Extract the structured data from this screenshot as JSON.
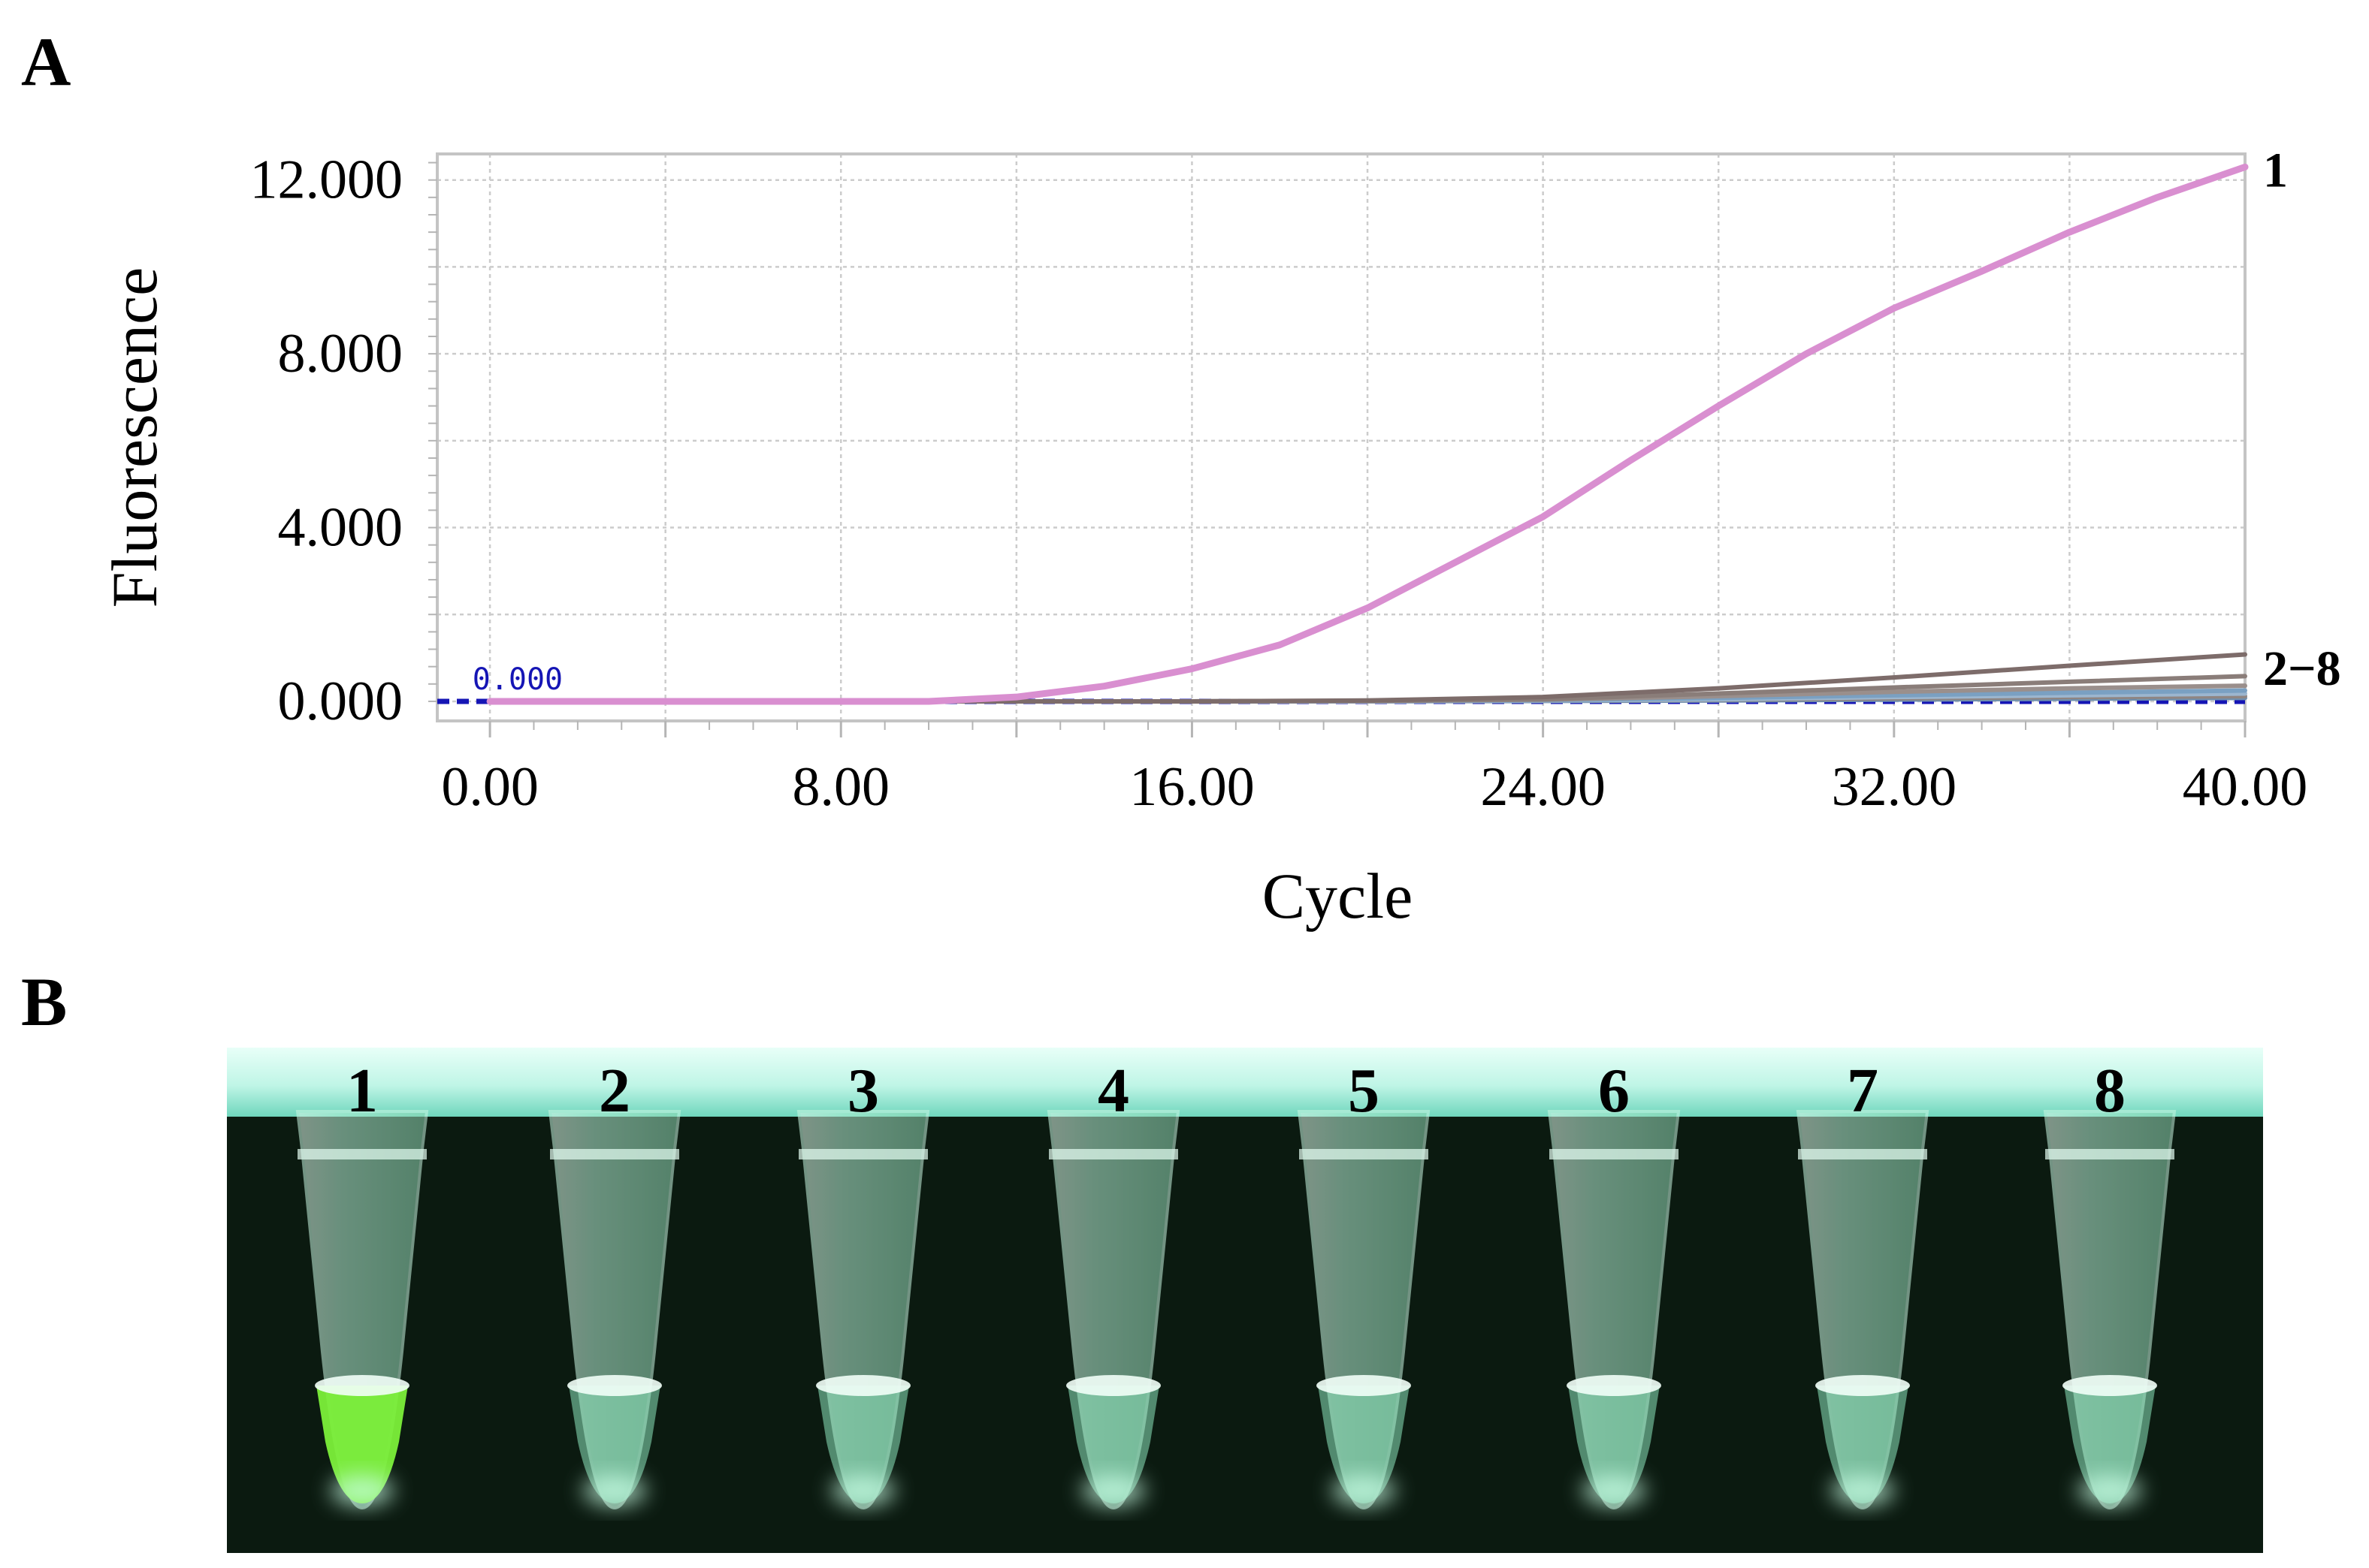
{
  "panels": {
    "a_label": "A",
    "b_label": "B"
  },
  "chart_data": {
    "type": "line",
    "xlabel": "Cycle",
    "ylabel": "Fluorescence",
    "xlim": [
      -1.2,
      40.0
    ],
    "ylim": [
      -0.45,
      12.6
    ],
    "xticks": [
      0,
      8,
      16,
      24,
      32,
      40
    ],
    "xtick_labels": [
      "0.00",
      "8.00",
      "16.00",
      "24.00",
      "32.00",
      "40.00"
    ],
    "yticks": [
      0,
      4,
      8,
      12
    ],
    "ytick_labels": [
      "0.000",
      "4.000",
      "8.000",
      "12.000"
    ],
    "grid": true,
    "threshold": {
      "value": 0.0,
      "label": "0.000",
      "color": "#1515b5"
    },
    "series": [
      {
        "name": "1",
        "color": "#d98fd0",
        "x": [
          0,
          2,
          4,
          6,
          8,
          10,
          12,
          14,
          16,
          18,
          20,
          22,
          24,
          26,
          28,
          30,
          32,
          34,
          36,
          38,
          40
        ],
        "y": [
          0,
          0,
          0,
          0,
          0,
          0,
          0.1,
          0.35,
          0.75,
          1.3,
          2.15,
          3.2,
          4.25,
          5.55,
          6.8,
          8.0,
          9.05,
          9.9,
          10.8,
          11.6,
          12.3
        ]
      },
      {
        "name": "2",
        "color": "#7d6c6a",
        "x": [
          0,
          4,
          8,
          12,
          16,
          20,
          24,
          28,
          32,
          36,
          40
        ],
        "y": [
          0,
          0,
          0,
          0,
          0,
          0.02,
          0.1,
          0.3,
          0.55,
          0.82,
          1.08
        ]
      },
      {
        "name": "3",
        "color": "#8a7d79",
        "x": [
          0,
          4,
          8,
          12,
          16,
          20,
          24,
          28,
          32,
          36,
          40
        ],
        "y": [
          0,
          0,
          0,
          0,
          0,
          0.01,
          0.05,
          0.18,
          0.32,
          0.45,
          0.58
        ]
      },
      {
        "name": "4",
        "color": "#9a8f8c",
        "x": [
          0,
          4,
          8,
          12,
          16,
          20,
          24,
          28,
          32,
          36,
          40
        ],
        "y": [
          0,
          0,
          0,
          0,
          0,
          0.01,
          0.04,
          0.12,
          0.22,
          0.3,
          0.36
        ]
      },
      {
        "name": "5",
        "color": "#7aa0c2",
        "x": [
          0,
          4,
          8,
          12,
          16,
          20,
          24,
          28,
          32,
          36,
          40
        ],
        "y": [
          0,
          0,
          0,
          0,
          0,
          0.01,
          0.03,
          0.08,
          0.14,
          0.2,
          0.25
        ]
      },
      {
        "name": "6",
        "color": "#9cb6cf",
        "x": [
          0,
          4,
          8,
          12,
          16,
          20,
          24,
          28,
          32,
          36,
          40
        ],
        "y": [
          0,
          0,
          0,
          0,
          0,
          0,
          0.02,
          0.05,
          0.1,
          0.14,
          0.18
        ]
      },
      {
        "name": "7",
        "color": "#8f8582",
        "x": [
          0,
          4,
          8,
          12,
          16,
          20,
          24,
          28,
          32,
          36,
          40
        ],
        "y": [
          0,
          0,
          0,
          0,
          0,
          0,
          0.02,
          0.04,
          0.07,
          0.1,
          0.12
        ]
      },
      {
        "name": "8",
        "color": "#6f8fae",
        "x": [
          0,
          4,
          8,
          12,
          16,
          20,
          24,
          28,
          32,
          36,
          40
        ],
        "y": [
          0,
          0,
          0,
          0,
          0,
          0,
          0.01,
          0.02,
          0.04,
          0.06,
          0.08
        ]
      }
    ],
    "annotations": [
      {
        "text": "1",
        "series": "1"
      },
      {
        "text": "2−8",
        "series": "2"
      }
    ]
  },
  "tube_photo": {
    "tube_labels": [
      "1",
      "2",
      "3",
      "4",
      "5",
      "6",
      "7",
      "8"
    ],
    "positive_tube": "1",
    "colors": {
      "background": "#0b1a10",
      "rack": "#bff5e6",
      "positive_fill": "#7cf03a",
      "negative_fill": "#8ee8bd",
      "tube_body": "#b5f0d5"
    }
  }
}
